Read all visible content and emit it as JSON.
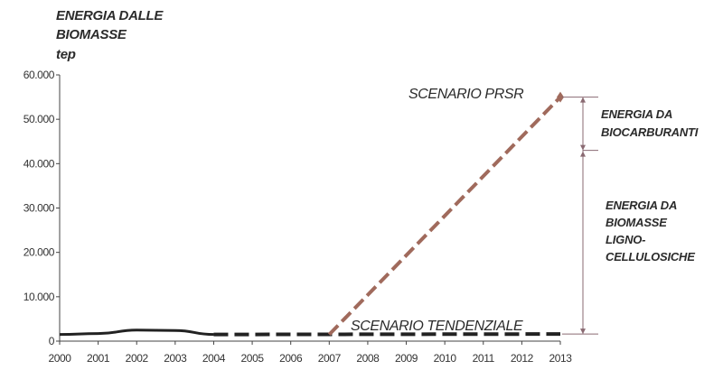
{
  "chart_data": {
    "type": "line",
    "title": [
      "ENERGIA DALLE",
      "BIOMASSE"
    ],
    "ylabel": "tep",
    "xlim": [
      2000,
      2013
    ],
    "ylim": [
      0,
      60000
    ],
    "x_ticks": [
      2000,
      2001,
      2002,
      2003,
      2004,
      2005,
      2006,
      2007,
      2008,
      2009,
      2010,
      2011,
      2012,
      2013
    ],
    "y_ticks": [
      0,
      10000,
      20000,
      30000,
      40000,
      50000,
      60000
    ],
    "y_tick_labels": [
      "0",
      "10.000",
      "20.000",
      "30.000",
      "40.000",
      "50.000",
      "60.000"
    ],
    "series": [
      {
        "name": "",
        "x": [
          2000,
          2001,
          2002,
          2003,
          2004
        ],
        "y": [
          1500,
          1700,
          2500,
          2400,
          1500
        ],
        "color": "#222222",
        "style": "solid"
      },
      {
        "name": "SCENARIO TENDENZIALE",
        "x": [
          2004,
          2013
        ],
        "y": [
          1500,
          1600
        ],
        "color": "#222222",
        "style": "dashed"
      },
      {
        "name": "SCENARIO PRSR",
        "x": [
          2007,
          2013
        ],
        "y": [
          1500,
          55000
        ],
        "color": "#a06a5c",
        "style": "dashed"
      }
    ],
    "annotations": {
      "total_top": 55000,
      "split": 43000,
      "base": 1600,
      "upper_label": [
        "ENERGIA DA",
        "BIOCARBURANTI"
      ],
      "lower_label": [
        "ENERGIA DA",
        "BIOMASSE",
        "LIGNO-",
        "CELLULOSICHE"
      ]
    },
    "grid": false,
    "legend": "none"
  }
}
